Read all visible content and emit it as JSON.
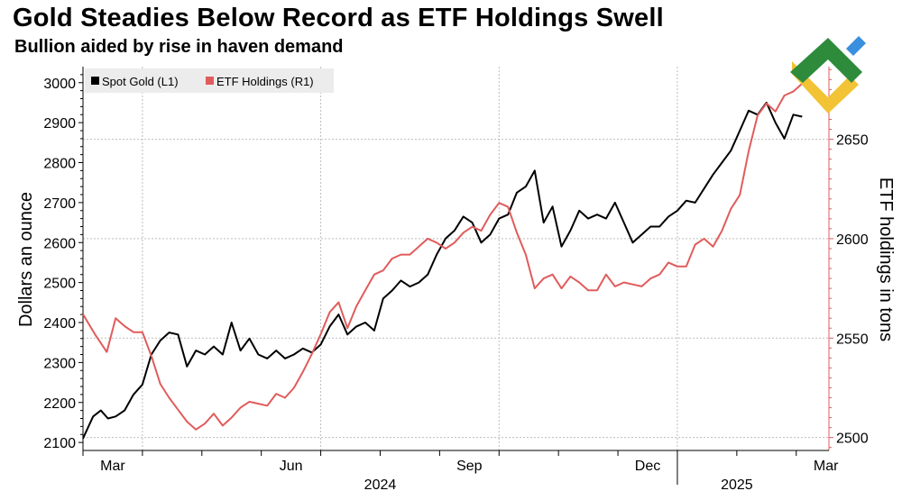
{
  "title": "Gold Steadies Below Record as ETF Holdings Swell",
  "subtitle": "Bullion aided by rise in haven demand",
  "chart_data": {
    "type": "line",
    "y_left": {
      "label": "Dollars an ounce",
      "range": [
        2080,
        3040
      ],
      "ticks": [
        2100,
        2200,
        2300,
        2400,
        2500,
        2600,
        2700,
        2800,
        2900,
        3000
      ],
      "tick_labels": [
        "2100",
        "2200",
        "2300",
        "2400",
        "2500",
        "2600",
        "2700",
        "2800",
        "2900",
        "3000"
      ]
    },
    "y_right": {
      "label": "ETF holdings in tons",
      "range": [
        2493.5,
        2686.5
      ],
      "ticks": [
        2500,
        2550,
        2600,
        2650
      ],
      "tick_labels": [
        "2500",
        "2550",
        "2600",
        "2650"
      ]
    },
    "x_axis": {
      "range": [
        0,
        12.55
      ],
      "month_ticks": [
        0.5,
        3.5,
        6.5,
        9.5,
        12.5
      ],
      "month_labels": [
        "Mar",
        "Jun",
        "Sep",
        "Dec",
        "Mar"
      ],
      "year_labels": [
        {
          "x": 5,
          "label": "2024"
        },
        {
          "x": 11,
          "label": "2025"
        }
      ]
    },
    "series": [
      {
        "name": "Spot Gold (L1)",
        "color": "#000000",
        "axis": "left",
        "x": [
          0,
          0.17,
          0.3,
          0.42,
          0.55,
          0.7,
          0.85,
          1.0,
          1.15,
          1.3,
          1.45,
          1.6,
          1.75,
          1.9,
          2.05,
          2.2,
          2.35,
          2.5,
          2.65,
          2.8,
          2.95,
          3.1,
          3.25,
          3.4,
          3.55,
          3.7,
          3.85,
          4.0,
          4.15,
          4.3,
          4.45,
          4.6,
          4.75,
          4.9,
          5.05,
          5.2,
          5.35,
          5.5,
          5.65,
          5.8,
          5.95,
          6.1,
          6.25,
          6.4,
          6.55,
          6.7,
          6.85,
          7.0,
          7.15,
          7.3,
          7.45,
          7.6,
          7.75,
          7.9,
          8.05,
          8.2,
          8.35,
          8.5,
          8.65,
          8.8,
          8.95,
          9.1,
          9.25,
          9.4,
          9.55,
          9.7,
          9.85,
          10.0,
          10.15,
          10.3,
          10.45,
          10.6,
          10.75,
          10.9,
          11.05,
          11.2,
          11.35,
          11.5,
          11.65,
          11.8,
          11.95,
          12.1
        ],
        "values": [
          2110,
          2165,
          2180,
          2160,
          2165,
          2180,
          2220,
          2245,
          2320,
          2355,
          2375,
          2370,
          2290,
          2330,
          2320,
          2340,
          2320,
          2400,
          2330,
          2360,
          2320,
          2310,
          2330,
          2310,
          2320,
          2335,
          2325,
          2345,
          2390,
          2420,
          2370,
          2390,
          2400,
          2380,
          2460,
          2480,
          2505,
          2490,
          2500,
          2520,
          2570,
          2610,
          2630,
          2665,
          2650,
          2600,
          2620,
          2660,
          2670,
          2725,
          2740,
          2780,
          2650,
          2690,
          2590,
          2630,
          2680,
          2660,
          2670,
          2660,
          2700,
          2650,
          2600,
          2620,
          2640,
          2640,
          2665,
          2680,
          2705,
          2700,
          2735,
          2770,
          2800,
          2830,
          2880,
          2930,
          2920,
          2950,
          2900,
          2860,
          2920,
          2915
        ]
      },
      {
        "name": "ETF Holdings (R1)",
        "color": "#e05c5c",
        "axis": "right",
        "x": [
          0,
          0.2,
          0.4,
          0.55,
          0.7,
          0.85,
          1.0,
          1.15,
          1.3,
          1.45,
          1.6,
          1.75,
          1.9,
          2.05,
          2.2,
          2.35,
          2.5,
          2.65,
          2.8,
          2.95,
          3.1,
          3.25,
          3.4,
          3.55,
          3.7,
          3.85,
          4.0,
          4.15,
          4.3,
          4.45,
          4.6,
          4.75,
          4.9,
          5.05,
          5.2,
          5.35,
          5.5,
          5.65,
          5.8,
          5.95,
          6.1,
          6.25,
          6.4,
          6.55,
          6.7,
          6.85,
          7.0,
          7.15,
          7.3,
          7.45,
          7.6,
          7.75,
          7.9,
          8.05,
          8.2,
          8.35,
          8.5,
          8.65,
          8.8,
          8.95,
          9.1,
          9.25,
          9.4,
          9.55,
          9.7,
          9.85,
          10.0,
          10.15,
          10.3,
          10.45,
          10.6,
          10.75,
          10.9,
          11.05,
          11.2,
          11.35,
          11.5,
          11.65,
          11.8,
          11.95,
          12.1
        ],
        "values": [
          2562,
          2552,
          2543,
          2560,
          2556,
          2553,
          2553,
          2541,
          2527,
          2520,
          2514,
          2508,
          2504,
          2507,
          2512,
          2506,
          2510,
          2515,
          2518,
          2517,
          2516,
          2522,
          2520,
          2525,
          2533,
          2542,
          2552,
          2563,
          2568,
          2555,
          2566,
          2574,
          2582,
          2584,
          2590,
          2592,
          2592,
          2596,
          2600,
          2598,
          2595,
          2598,
          2603,
          2606,
          2604,
          2612,
          2618,
          2616,
          2603,
          2592,
          2575,
          2580,
          2582,
          2575,
          2581,
          2578,
          2574,
          2574,
          2582,
          2576,
          2578,
          2577,
          2576,
          2580,
          2582,
          2588,
          2586,
          2586,
          2597,
          2600,
          2596,
          2604,
          2615,
          2622,
          2644,
          2662,
          2668,
          2664,
          2672,
          2674,
          2678
        ]
      }
    ]
  }
}
